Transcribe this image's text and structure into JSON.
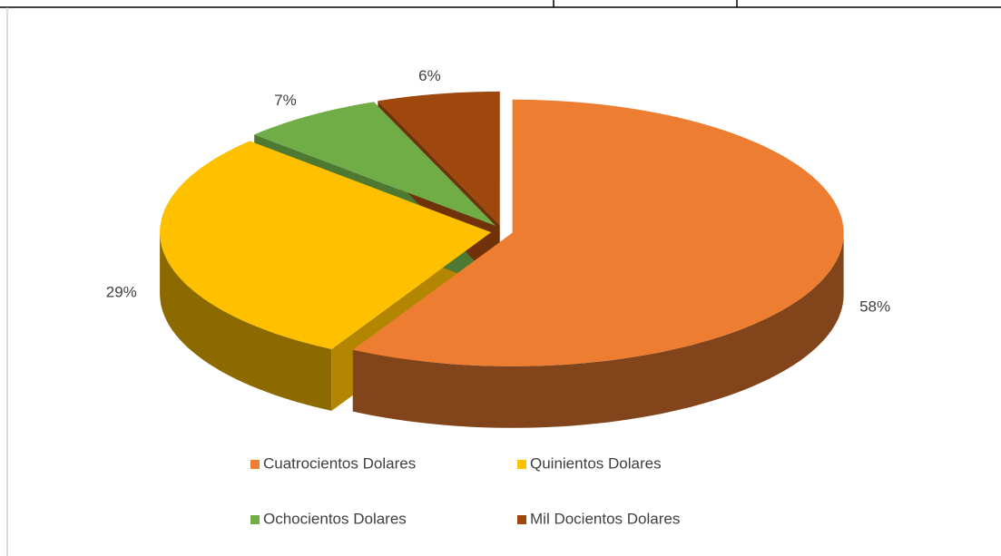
{
  "chart_data": {
    "type": "pie",
    "categories": [
      "Cuatrocientos Dolares",
      "Quinientos Dolares",
      "Ochocientos Dolares",
      "Mil Docientos Dolares"
    ],
    "values": [
      58,
      29,
      7,
      6
    ],
    "value_labels": [
      "58%",
      "29%",
      "7%",
      "6%"
    ],
    "colors": [
      "#ed7d31",
      "#ffc000",
      "#70ad47",
      "#9e480e"
    ],
    "legend": "bottom"
  }
}
